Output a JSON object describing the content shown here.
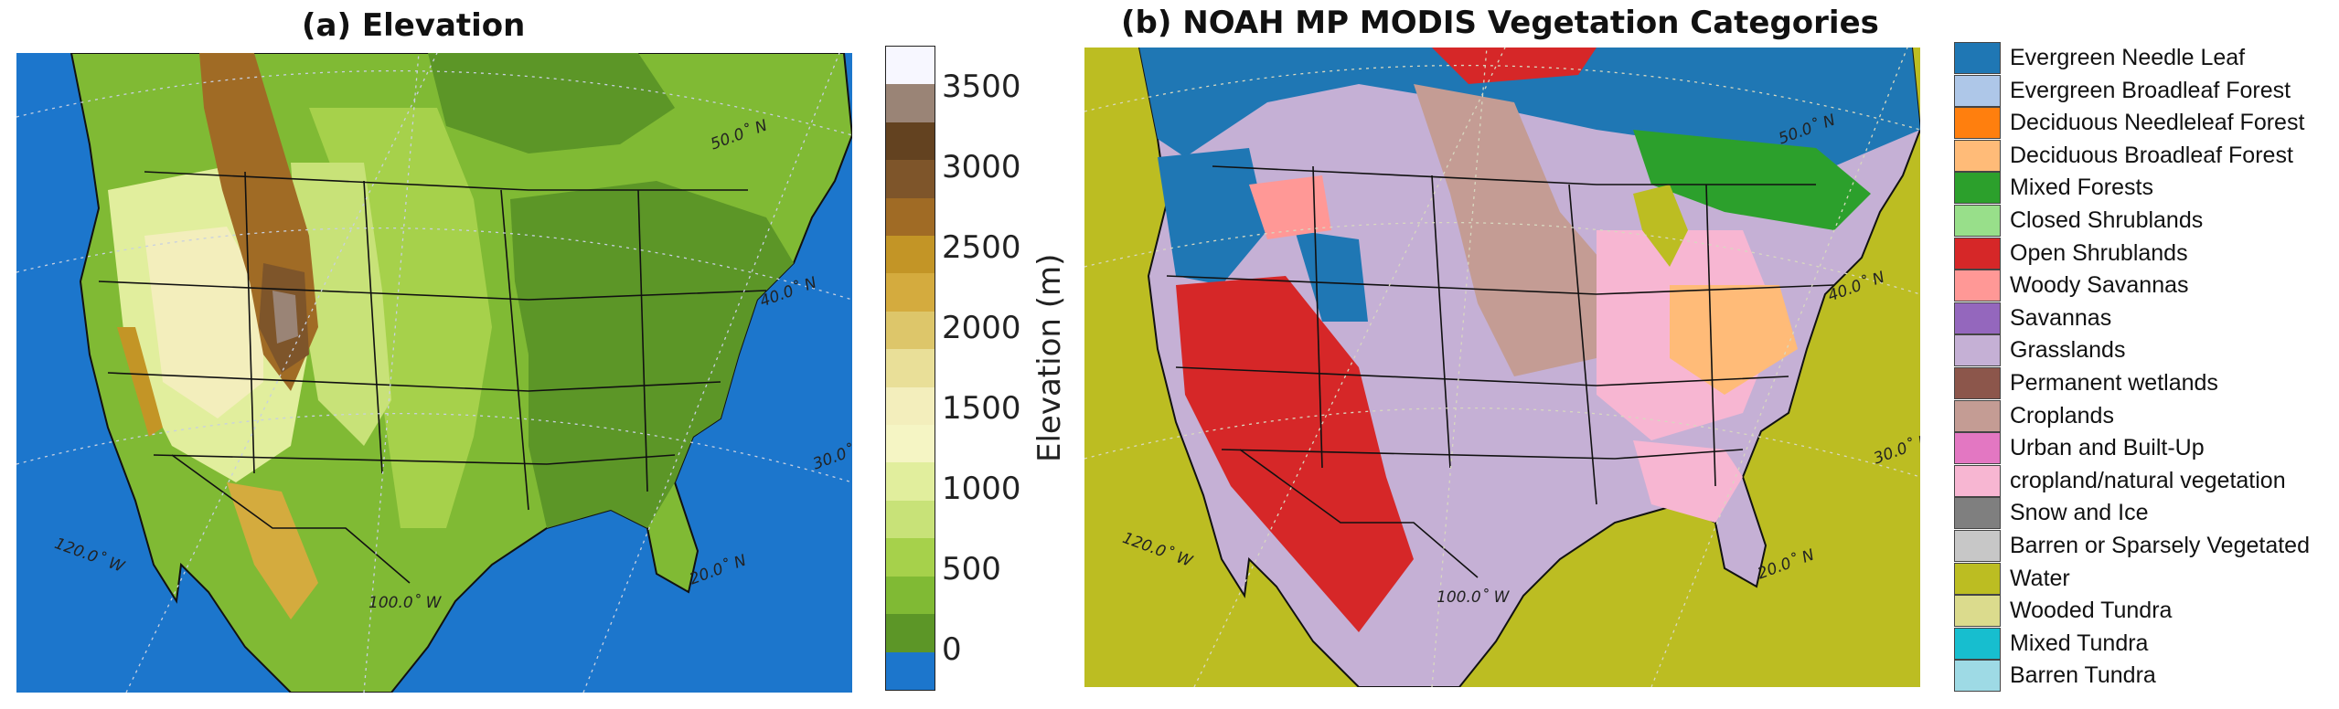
{
  "panel_a": {
    "title": "(a)  Elevation",
    "grid_labels": [
      "50.0˚ N",
      "40.0˚ N",
      "30.0˚ N",
      "120.0˚ W",
      "100.0˚ W",
      "20.0˚ N"
    ],
    "colorbar": {
      "label": "Elevation (m)",
      "ticks": [
        "3500",
        "3000",
        "2500",
        "2000",
        "1500",
        "1000",
        "500",
        "0"
      ],
      "colors": [
        "#f7f7ff",
        "#9a8476",
        "#634220",
        "#7e552a",
        "#a06b25",
        "#c39526",
        "#d4ab3e",
        "#ddc66a",
        "#e9df98",
        "#f3eebc",
        "#f5f5c4",
        "#e1ee9d",
        "#c8e278",
        "#a6d14b",
        "#80ba34",
        "#5c9627",
        "#1c76cc"
      ]
    },
    "colors": {
      "water": "#1c76cc",
      "lowland": "#5c9627",
      "plain_low": "#80ba34",
      "plain": "#a6d14b",
      "high_plain": "#c8e278",
      "plateau": "#e1ee9d",
      "mountain": "#a06b25",
      "peak": "#9a8476"
    }
  },
  "panel_b": {
    "title": "(b) NOAH MP MODIS Vegetation Categories",
    "grid_labels": [
      "50.0˚ N",
      "40.0˚ N",
      "30.0˚ N",
      "120.0˚ W",
      "100.0˚ W",
      "20.0˚ N"
    ],
    "legend": [
      {
        "label": "Evergreen Needle Leaf",
        "color": "#1f77b4"
      },
      {
        "label": "Evergreen Broadleaf Forest",
        "color": "#aec7e8"
      },
      {
        "label": "Deciduous Needleleaf Forest",
        "color": "#ff7f0e"
      },
      {
        "label": "Deciduous Broadleaf Forest",
        "color": "#ffbb78"
      },
      {
        "label": "Mixed Forests",
        "color": "#2ca02c"
      },
      {
        "label": "Closed Shrublands",
        "color": "#98df8a"
      },
      {
        "label": "Open Shrublands",
        "color": "#d62728"
      },
      {
        "label": "Woody Savannas",
        "color": "#ff9896"
      },
      {
        "label": "Savannas",
        "color": "#9467bd"
      },
      {
        "label": "Grasslands",
        "color": "#c5b0d5"
      },
      {
        "label": "Permanent wetlands",
        "color": "#8c564b"
      },
      {
        "label": "Croplands",
        "color": "#c49c94"
      },
      {
        "label": "Urban and Built-Up",
        "color": "#e377c2"
      },
      {
        "label": "cropland/natural vegetation",
        "color": "#f7b6d2"
      },
      {
        "label": "Snow and Ice",
        "color": "#7f7f7f"
      },
      {
        "label": "Barren or Sparsely Vegetated",
        "color": "#c7c7c7"
      },
      {
        "label": "Water",
        "color": "#bcbd22"
      },
      {
        "label": "Wooded Tundra",
        "color": "#dbdb8d"
      },
      {
        "label": "Mixed Tundra",
        "color": "#17becf"
      },
      {
        "label": "Barren Tundra",
        "color": "#9edae5"
      }
    ]
  }
}
